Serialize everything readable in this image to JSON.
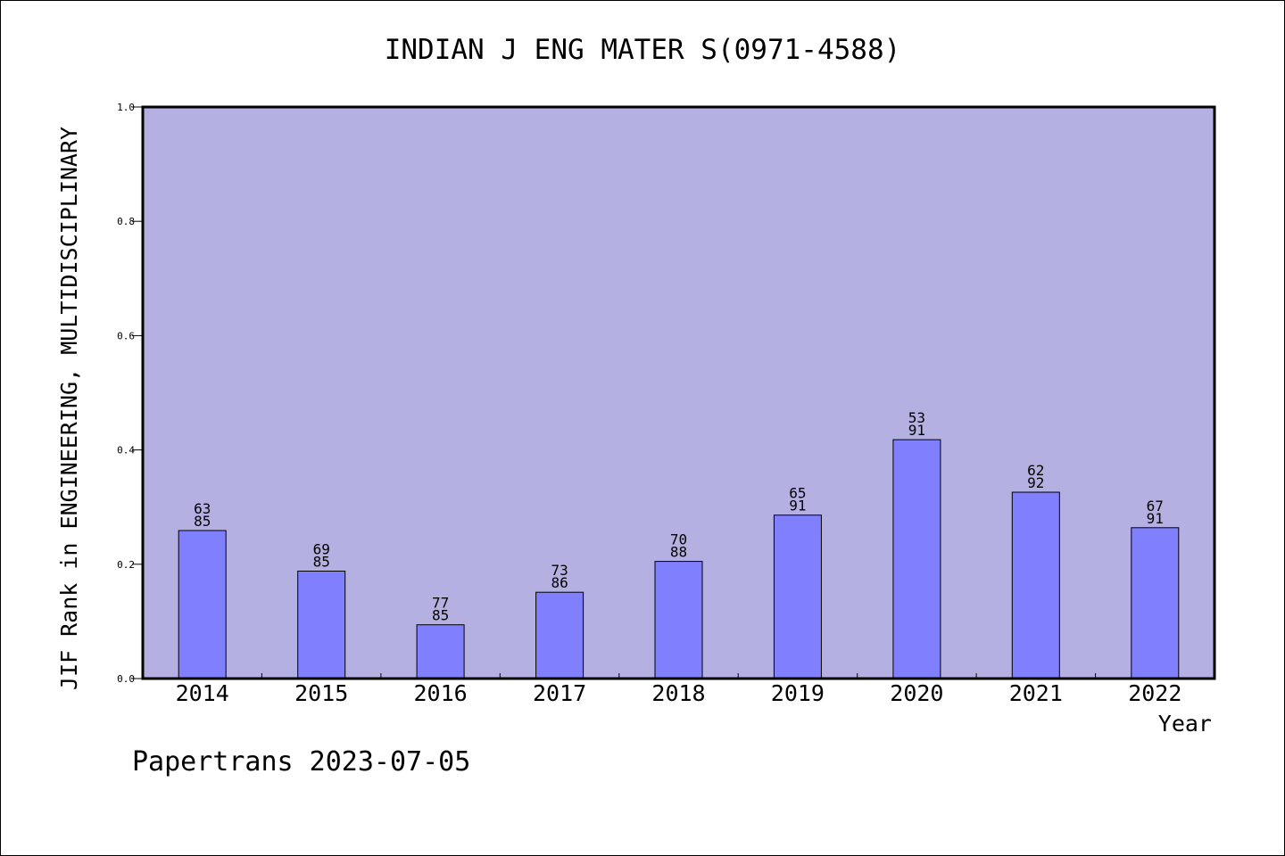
{
  "chart_data": {
    "type": "bar",
    "title": "INDIAN J ENG MATER S(0971-4588)",
    "xlabel": "Year",
    "ylabel": "JIF Rank in ENGINEERING, MULTIDISCIPLINARY",
    "ylim": [
      0,
      1.0
    ],
    "yticks": [
      "0.0",
      "0.2",
      "0.4",
      "0.6",
      "0.8",
      "1.0"
    ],
    "categories": [
      "2014",
      "2015",
      "2016",
      "2017",
      "2018",
      "2019",
      "2020",
      "2021",
      "2022"
    ],
    "values": [
      0.259,
      0.188,
      0.094,
      0.151,
      0.205,
      0.286,
      0.418,
      0.326,
      0.264
    ],
    "rank_labels": [
      [
        "63",
        "85"
      ],
      [
        "69",
        "85"
      ],
      [
        "77",
        "85"
      ],
      [
        "73",
        "86"
      ],
      [
        "70",
        "88"
      ],
      [
        "65",
        "91"
      ],
      [
        "53",
        "91"
      ],
      [
        "62",
        "92"
      ],
      [
        "67",
        "91"
      ]
    ],
    "colors": {
      "plot_bg": "#b5b0e2",
      "bar": "#8080ff",
      "axis": "#000000"
    },
    "grid": false
  },
  "footer": "Papertrans 2023-07-05"
}
